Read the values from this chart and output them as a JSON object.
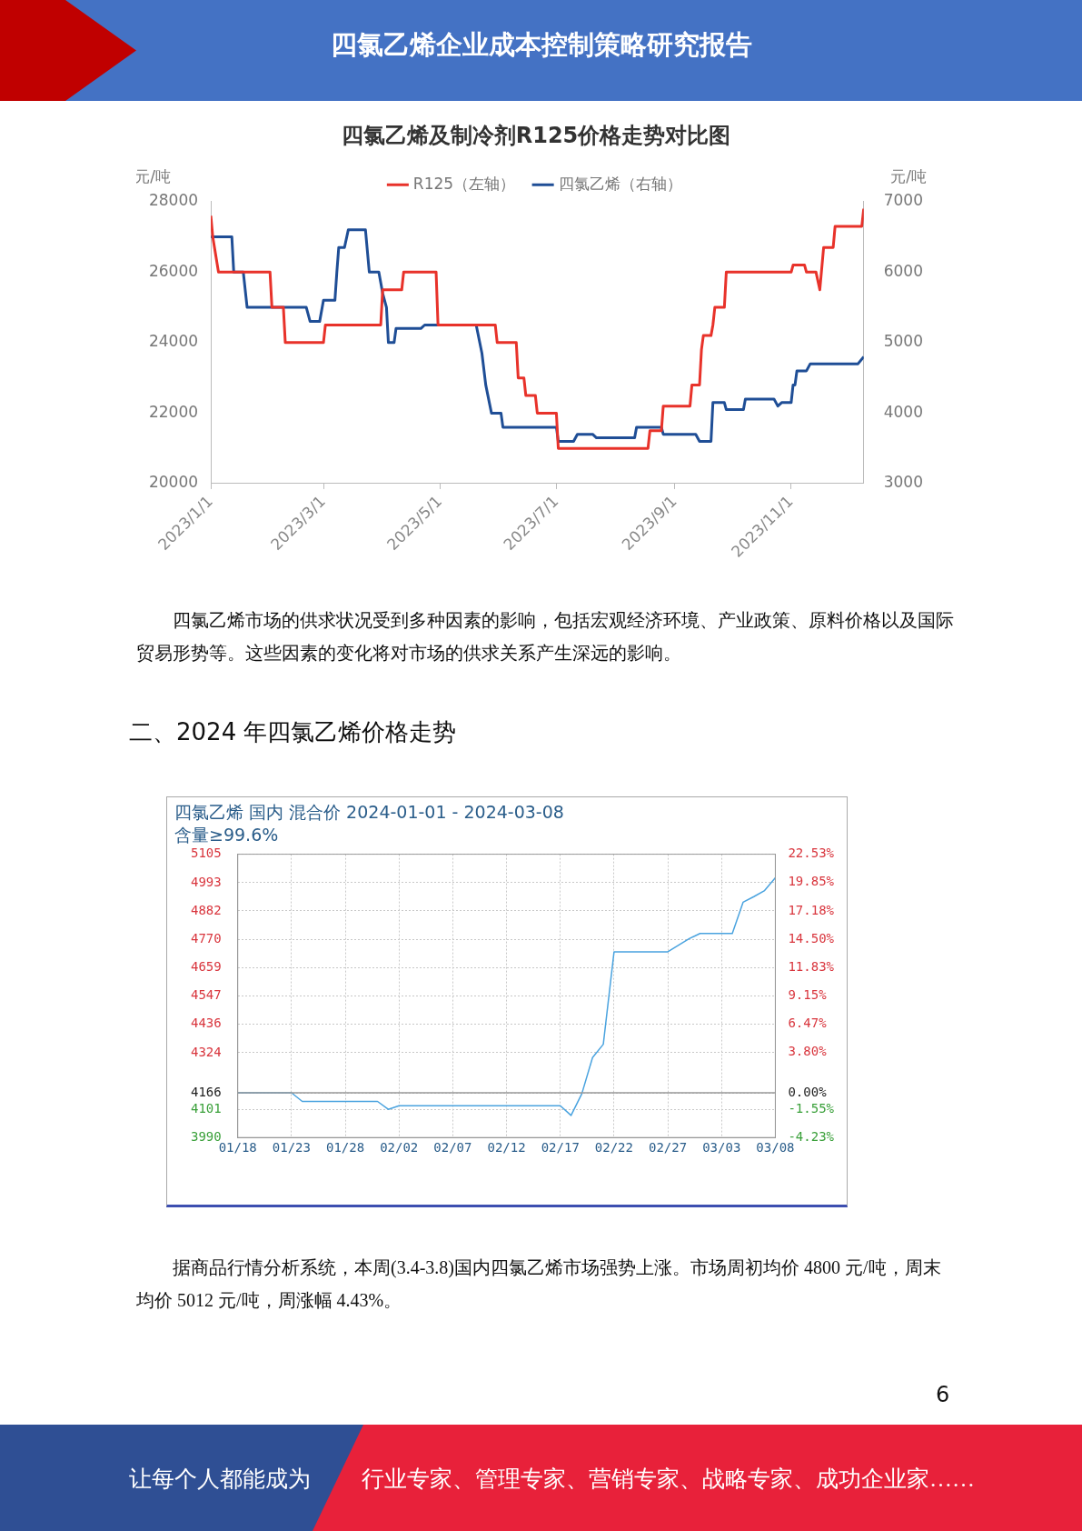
{
  "chart_data": [
    {
      "type": "line",
      "title": "四氯乙烯及制冷剂R125价格走势对比图",
      "ylabel": "元/吨",
      "y2label": "元/吨",
      "legend": "top",
      "marker": "none",
      "xlim": [
        "2023-01-01",
        "2023-12-09"
      ],
      "xticks": [
        {
          "value": "2023-01-01",
          "label": "2023/1/1"
        },
        {
          "value": "2023-03-01",
          "label": "2023/3/1"
        },
        {
          "value": "2023-05-01",
          "label": "2023/5/1"
        },
        {
          "value": "2023-07-01",
          "label": "2023/7/1"
        },
        {
          "value": "2023-09-01",
          "label": "2023/9/1"
        },
        {
          "value": "2023-11-01",
          "label": "2023/11/1"
        }
      ],
      "ylim": [
        20000,
        28000
      ],
      "yticks": [
        20000,
        22000,
        24000,
        26000,
        28000
      ],
      "y2lim": [
        3000,
        7000
      ],
      "y2ticks": [
        3000,
        4000,
        5000,
        6000,
        7000
      ],
      "series": [
        {
          "name": "R125（左轴）",
          "color": "#e8322a",
          "x": [
            "2023-01-01",
            "2023-01-02",
            "2023-01-05",
            "2023-02-01",
            "2023-02-02",
            "2023-02-08",
            "2023-02-09",
            "2023-03-01",
            "2023-03-02",
            "2023-03-31",
            "2023-04-01",
            "2023-04-11",
            "2023-04-12",
            "2023-04-29",
            "2023-04-30",
            "2023-05-30",
            "2023-05-31",
            "2023-06-10",
            "2023-06-11",
            "2023-06-14",
            "2023-06-15",
            "2023-06-20",
            "2023-06-21",
            "2023-07-01",
            "2023-07-02",
            "2023-08-18",
            "2023-08-19",
            "2023-08-25",
            "2023-08-26",
            "2023-09-09",
            "2023-09-10",
            "2023-09-14",
            "2023-09-15",
            "2023-09-16",
            "2023-09-20",
            "2023-09-21",
            "2023-09-22",
            "2023-09-27",
            "2023-09-28",
            "2023-11-01",
            "2023-11-02",
            "2023-11-08",
            "2023-11-09",
            "2023-11-14",
            "2023-11-16",
            "2023-11-18",
            "2023-11-23",
            "2023-11-24",
            "2023-12-08",
            "2023-12-09"
          ],
          "values": [
            27600,
            27000,
            26000,
            26000,
            25000,
            25000,
            24000,
            24000,
            24500,
            24500,
            25500,
            25500,
            26000,
            26000,
            24500,
            24500,
            24000,
            24000,
            23000,
            23000,
            22500,
            22500,
            22000,
            22000,
            21000,
            21000,
            21500,
            21500,
            22200,
            22200,
            22800,
            22800,
            23800,
            24200,
            24200,
            24500,
            25000,
            25000,
            26000,
            26000,
            26200,
            26200,
            26000,
            26000,
            25500,
            26700,
            26700,
            27300,
            27300,
            27800
          ]
        },
        {
          "name": "四氯乙烯（右轴）",
          "color": "#1f4e96",
          "axis": "y2",
          "x": [
            "2023-01-01",
            "2023-01-12",
            "2023-01-13",
            "2023-01-18",
            "2023-01-20",
            "2023-02-20",
            "2023-02-22",
            "2023-02-27",
            "2023-03-01",
            "2023-03-07",
            "2023-03-08",
            "2023-03-09",
            "2023-03-12",
            "2023-03-14",
            "2023-03-23",
            "2023-03-25",
            "2023-03-30",
            "2023-04-01",
            "2023-04-03",
            "2023-04-04",
            "2023-04-07",
            "2023-04-08",
            "2023-04-21",
            "2023-04-23",
            "2023-05-20",
            "2023-05-23",
            "2023-05-25",
            "2023-05-28",
            "2023-06-02",
            "2023-06-03",
            "2023-07-01",
            "2023-07-02",
            "2023-07-10",
            "2023-07-12",
            "2023-07-20",
            "2023-07-22",
            "2023-08-11",
            "2023-08-12",
            "2023-08-25",
            "2023-08-26",
            "2023-09-12",
            "2023-09-14",
            "2023-09-20",
            "2023-09-21",
            "2023-09-27",
            "2023-09-28",
            "2023-10-07",
            "2023-10-08",
            "2023-10-23",
            "2023-10-25",
            "2023-10-27",
            "2023-11-01",
            "2023-11-02",
            "2023-11-03",
            "2023-11-04",
            "2023-11-09",
            "2023-11-11",
            "2023-12-06",
            "2023-12-09"
          ],
          "values": [
            6500,
            6500,
            6000,
            6000,
            5500,
            5500,
            5300,
            5300,
            5600,
            5600,
            6000,
            6350,
            6350,
            6600,
            6600,
            6000,
            6000,
            5700,
            5500,
            5000,
            5000,
            5200,
            5200,
            5250,
            5250,
            4850,
            4400,
            4000,
            4000,
            3800,
            3800,
            3600,
            3600,
            3700,
            3700,
            3650,
            3650,
            3800,
            3800,
            3700,
            3700,
            3600,
            3600,
            4150,
            4150,
            4050,
            4050,
            4200,
            4200,
            4100,
            4150,
            4150,
            4400,
            4400,
            4600,
            4600,
            4700,
            4700,
            4800
          ]
        }
      ],
      "annotations": [
        "四氯乙烯企业成本控制策略研究报告",
        "四氯乙烯市场的供求状况受到多种因素的影响，包括宏观经济环境、产业政策、原料价格以及国际贸易形势等。这些因素的变化将对市场的供求关系产生深远的影响。"
      ]
    },
    {
      "type": "line",
      "title": "四氯乙烯 国内 混合价 2024-01-01 - 2024-03-08",
      "subtitle": "含量≥99.6%",
      "marker": "none",
      "grid": true,
      "xlim": [
        "2024-01-18",
        "2024-03-08"
      ],
      "xticks": [
        {
          "value": "2024-01-18",
          "label": "01/18"
        },
        {
          "value": "2024-01-23",
          "label": "01/23"
        },
        {
          "value": "2024-01-28",
          "label": "01/28"
        },
        {
          "value": "2024-02-02",
          "label": "02/02"
        },
        {
          "value": "2024-02-07",
          "label": "02/07"
        },
        {
          "value": "2024-02-12",
          "label": "02/12"
        },
        {
          "value": "2024-02-17",
          "label": "02/17"
        },
        {
          "value": "2024-02-22",
          "label": "02/22"
        },
        {
          "value": "2024-02-27",
          "label": "02/27"
        },
        {
          "value": "2024-03-03",
          "label": "03/03"
        },
        {
          "value": "2024-03-08",
          "label": "03/08"
        }
      ],
      "ylim": [
        3990,
        5105
      ],
      "yticks": [
        3990,
        4101,
        4166,
        4324,
        4436,
        4547,
        4659,
        4770,
        4882,
        4993,
        5105
      ],
      "y2lim": [
        -4.23,
        22.53
      ],
      "y2ticks": [
        {
          "value": -4.23,
          "label": "-4.23%"
        },
        {
          "value": -1.55,
          "label": "-1.55%"
        },
        {
          "value": 0,
          "label": "0.00%"
        },
        {
          "value": 3.8,
          "label": "3.80%"
        },
        {
          "value": 6.47,
          "label": "6.47%"
        },
        {
          "value": 9.15,
          "label": "9.15%"
        },
        {
          "value": 11.83,
          "label": "11.83%"
        },
        {
          "value": 14.5,
          "label": "14.50%"
        },
        {
          "value": 17.18,
          "label": "17.18%"
        },
        {
          "value": 19.85,
          "label": "19.85%"
        },
        {
          "value": 22.53,
          "label": "22.53%"
        }
      ],
      "ref_lines": [
        {
          "axis": "y",
          "value": 4166,
          "color": "#999999"
        }
      ],
      "series": [
        {
          "color": "#4aa3df",
          "x": [
            "2024-01-18",
            "2024-01-23",
            "2024-01-24",
            "2024-01-31",
            "2024-02-01",
            "2024-02-02",
            "2024-02-17",
            "2024-02-18",
            "2024-02-19",
            "2024-02-20",
            "2024-02-21",
            "2024-02-22",
            "2024-02-27",
            "2024-02-28",
            "2024-02-29",
            "2024-03-01",
            "2024-03-04",
            "2024-03-05",
            "2024-03-06",
            "2024-03-07",
            "2024-03-08"
          ],
          "values": [
            4166,
            4166,
            4132,
            4132,
            4101,
            4115,
            4115,
            4077,
            4162,
            4305,
            4357,
            4721,
            4721,
            4747,
            4773,
            4793,
            4793,
            4916,
            4938,
            4962,
            5012
          ]
        }
      ],
      "annotations": [
        "二、2024 年四氯乙烯价格走势",
        "据商品行情分析系统，本周(3.4-3.8)国内四氯乙烯市场强势上涨。市场周初均价 4800 元/吨，周末均价 5012 元/吨，周涨幅 4.43%。",
        "6",
        "让每个人都能成为",
        "行业专家、管理专家、营销专家、战略专家、成功企业家……"
      ]
    }
  ]
}
